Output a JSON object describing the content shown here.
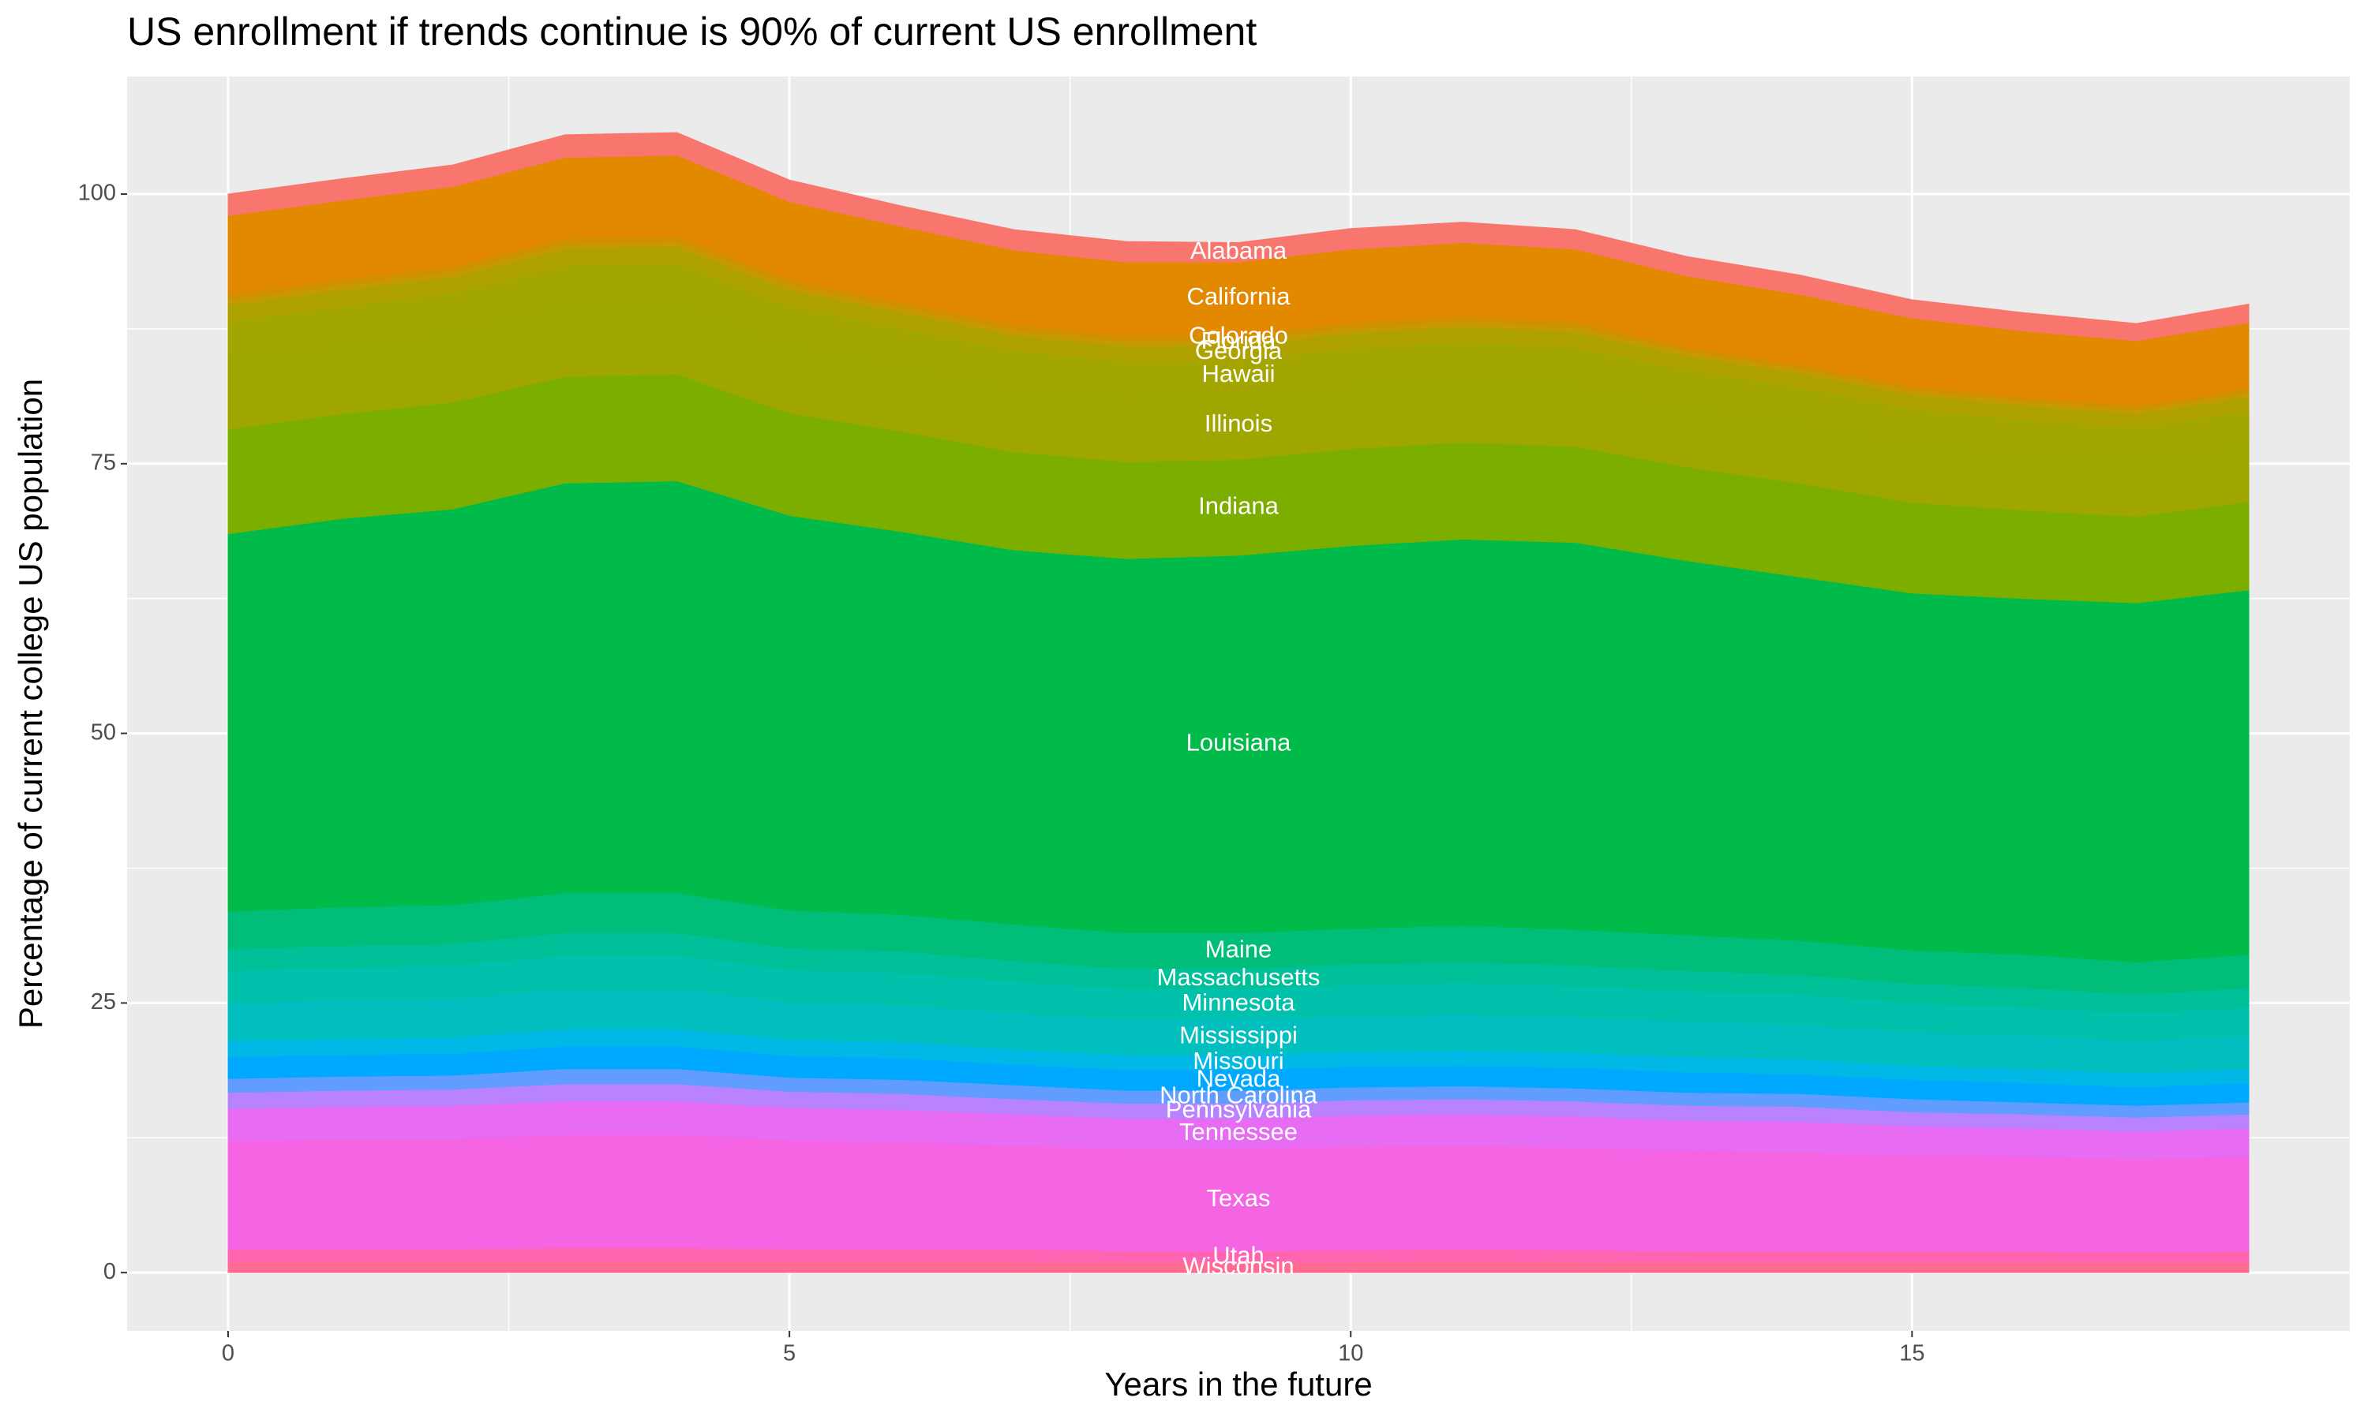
{
  "chart_data": {
    "type": "stacked_area",
    "title": "US enrollment if trends continue is 90% of current US enrollment",
    "x_label": "Years in the future",
    "y_label": "Percentage of current college US population",
    "x": [
      0,
      1,
      2,
      3,
      4,
      5,
      6,
      7,
      8,
      9,
      10,
      11,
      12,
      13,
      14,
      15,
      16,
      17,
      18
    ],
    "xlim": [
      -0.9,
      18.9
    ],
    "xticks": [
      0,
      5,
      10,
      15
    ],
    "ylim": [
      -5.4,
      110.9
    ],
    "yticks": [
      0,
      25,
      50,
      75,
      100
    ],
    "grid": true,
    "grid_minor": true,
    "series": [
      {
        "name": "Alabama",
        "color": "#F8766D",
        "values": [
          2,
          2,
          2,
          2.1,
          2.1,
          2,
          1.9,
          1.9,
          1.9,
          1.8,
          1.9,
          1.9,
          1.8,
          1.8,
          1.8,
          1.7,
          1.7,
          1.6,
          1.7
        ]
      },
      {
        "name": "California",
        "color": "#E38900",
        "values": [
          7.3,
          7.3,
          7.4,
          7.5,
          7.5,
          7.2,
          7,
          6.9,
          6.8,
          6.7,
          6.8,
          6.8,
          6.7,
          6.6,
          6.5,
          6.3,
          6.1,
          6,
          6.1
        ]
      },
      {
        "name": "Colorado",
        "color": "#D28F00",
        "values": [
          0.5,
          0.5,
          0.5,
          0.5,
          0.5,
          0.5,
          0.5,
          0.5,
          0.5,
          0.5,
          0.5,
          0.5,
          0.5,
          0.4,
          0.4,
          0.4,
          0.4,
          0.4,
          0.4
        ]
      },
      {
        "name": "Florida",
        "color": "#C49A00",
        "values": [
          0.5,
          0.5,
          0.5,
          0.5,
          0.5,
          0.5,
          0.5,
          0.5,
          0.5,
          0.5,
          0.5,
          0.5,
          0.5,
          0.4,
          0.4,
          0.4,
          0.4,
          0.4,
          0.4
        ]
      },
      {
        "name": "Georgia",
        "color": "#AFA100",
        "values": [
          1.5,
          1.5,
          1.5,
          1.5,
          1.5,
          1.5,
          1.4,
          1.4,
          1.4,
          1.4,
          1.4,
          1.4,
          1.4,
          1.3,
          1.3,
          1.3,
          1.3,
          1.2,
          1.3
        ]
      },
      {
        "name": "Hawaii",
        "color": "#A3A500",
        "values": [
          3,
          3,
          3,
          3.1,
          3.1,
          3,
          2.9,
          2.8,
          2.8,
          2.8,
          2.8,
          2.8,
          2.8,
          2.7,
          2.7,
          2.6,
          2.5,
          2.5,
          2.5
        ]
      },
      {
        "name": "Illinois",
        "color": "#A0A600",
        "values": [
          7,
          7,
          7.1,
          7.2,
          7.2,
          6.9,
          6.7,
          6.6,
          6.5,
          6.4,
          6.5,
          6.5,
          6.4,
          6.3,
          6.2,
          6.1,
          5.9,
          5.8,
          5.9
        ]
      },
      {
        "name": "Indiana",
        "color": "#7CAE00",
        "values": [
          9.7,
          9.7,
          9.9,
          9.9,
          9.9,
          9.5,
          9.3,
          9.1,
          9,
          8.9,
          9,
          9,
          8.9,
          8.7,
          8.7,
          8.4,
          8.2,
          8,
          8.2
        ]
      },
      {
        "name": "Louisiana",
        "color": "#00BA4A",
        "values": [
          35,
          36,
          36.7,
          38,
          38.2,
          36.6,
          35.5,
          34.7,
          34.7,
          35,
          35.5,
          35.8,
          35.9,
          34.7,
          33.7,
          33.1,
          33,
          33.3,
          33.8
        ]
      },
      {
        "name": "Maine",
        "color": "#00BE7A",
        "values": [
          3.5,
          3.6,
          3.6,
          3.7,
          3.7,
          3.5,
          3.4,
          3.4,
          3.3,
          3.3,
          3.3,
          3.4,
          3.3,
          3.3,
          3.2,
          3.1,
          3.1,
          3,
          3.1
        ]
      },
      {
        "name": "Massachusetts",
        "color": "#00C09A",
        "values": [
          2,
          2,
          2,
          2.1,
          2.1,
          2,
          2,
          1.9,
          1.9,
          1.9,
          1.9,
          1.9,
          1.9,
          1.9,
          1.8,
          1.8,
          1.8,
          1.7,
          1.8
        ]
      },
      {
        "name": "Minnesota",
        "color": "#00C1AB",
        "values": [
          3,
          3,
          3.1,
          3.1,
          3.1,
          3,
          3,
          2.9,
          2.8,
          2.8,
          2.9,
          2.9,
          2.9,
          2.8,
          2.8,
          2.7,
          2.6,
          2.6,
          2.6
        ]
      },
      {
        "name": "Mississippi",
        "color": "#00BFBE",
        "values": [
          3.5,
          3.6,
          3.6,
          3.7,
          3.7,
          3.5,
          3.4,
          3.4,
          3.3,
          3.3,
          3.3,
          3.4,
          3.3,
          3.3,
          3.2,
          3.1,
          3.1,
          3,
          3.1
        ]
      },
      {
        "name": "Missouri",
        "color": "#00B8E5",
        "values": [
          1.5,
          1.5,
          1.5,
          1.6,
          1.6,
          1.5,
          1.5,
          1.4,
          1.4,
          1.4,
          1.4,
          1.4,
          1.4,
          1.4,
          1.4,
          1.3,
          1.3,
          1.3,
          1.3
        ]
      },
      {
        "name": "Nevada",
        "color": "#00A9FF",
        "values": [
          2,
          2,
          2,
          2.1,
          2.1,
          2,
          2,
          1.9,
          1.9,
          1.9,
          1.9,
          1.9,
          1.9,
          1.9,
          1.8,
          1.8,
          1.8,
          1.7,
          1.8
        ]
      },
      {
        "name": "North Carolina",
        "color": "#619CFF",
        "values": [
          1.3,
          1.3,
          1.3,
          1.4,
          1.4,
          1.3,
          1.3,
          1.3,
          1.2,
          1.2,
          1.2,
          1.2,
          1.2,
          1.2,
          1.2,
          1.2,
          1.1,
          1.1,
          1.1
        ]
      },
      {
        "name": "Pennsylvania",
        "color": "#B983FF",
        "values": [
          1.5,
          1.5,
          1.5,
          1.6,
          1.6,
          1.5,
          1.5,
          1.4,
          1.4,
          1.4,
          1.4,
          1.4,
          1.4,
          1.4,
          1.4,
          1.3,
          1.3,
          1.3,
          1.3
        ]
      },
      {
        "name": "Tennessee",
        "color": "#E76BF3",
        "values": [
          3,
          3,
          3.1,
          3.1,
          3.1,
          3,
          3,
          2.9,
          2.8,
          2.8,
          2.9,
          2.9,
          2.9,
          2.8,
          2.8,
          2.7,
          2.6,
          2.6,
          2.6
        ]
      },
      {
        "name": "Texas",
        "color": "#F564E3",
        "values": [
          10,
          10.2,
          10.2,
          10.5,
          10.5,
          10.1,
          9.9,
          9.6,
          9.5,
          9.5,
          9.6,
          9.6,
          9.5,
          9.3,
          9.2,
          8.9,
          8.8,
          8.6,
          8.8
        ]
      },
      {
        "name": "Utah",
        "color": "#FF64B0",
        "values": [
          1.2,
          1.2,
          1.2,
          1.3,
          1.3,
          1.2,
          1.2,
          1.2,
          1.1,
          1.1,
          1.1,
          1.2,
          1.1,
          1.1,
          1.1,
          1.1,
          1.1,
          1,
          1.1
        ]
      },
      {
        "name": "Wisconsin",
        "color": "#FF6C91",
        "values": [
          1,
          1,
          1,
          1,
          1,
          1,
          1,
          1,
          0.9,
          0.9,
          1,
          1,
          1,
          0.9,
          0.9,
          0.9,
          0.9,
          0.9,
          0.9
        ]
      }
    ]
  }
}
